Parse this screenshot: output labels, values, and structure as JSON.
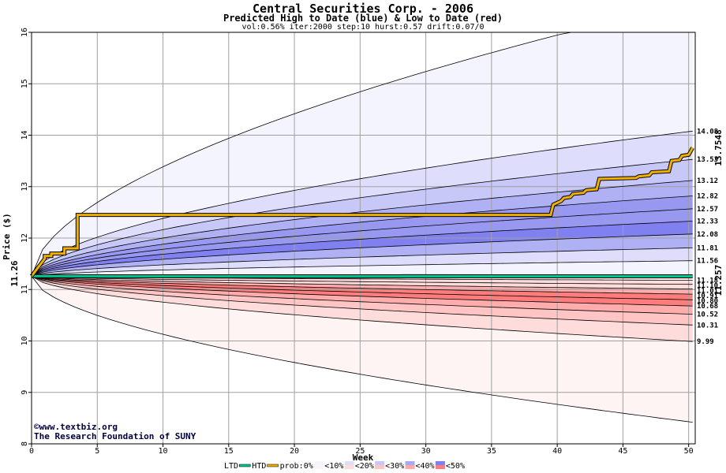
{
  "chart_data": {
    "type": "area",
    "title": "Central Securities Corp. - 2006",
    "subtitle": "Predicted High to Date (blue) &  Low to Date (red)",
    "params": "vol:0.56% iter:2000 step:10 hurst:0.57 drift:0.07/0",
    "xlabel": "Week",
    "ylabel": "Price ($)",
    "xlim": [
      0,
      50.5
    ],
    "ylim": [
      8,
      16
    ],
    "x_ticks": [
      "0",
      "5",
      "10",
      "15",
      "20",
      "25",
      "30",
      "35",
      "40",
      "45",
      "50"
    ],
    "y_ticks": [
      "8",
      "9",
      "10",
      "11",
      "12",
      "13",
      "14",
      "15",
      "16"
    ],
    "grid": true,
    "start_price": 11.26,
    "start_label": "11.26",
    "htd_final_label": "13.7548",
    "ltd_final_label": "11.257",
    "colors": {
      "htd": "#f0b000",
      "ltd": "#00c890",
      "htd_label": "#a07800",
      "ltd_label": "#007050",
      "high_bands": [
        "#f4f4ff",
        "#dedefc",
        "#c8c8f8",
        "#b0b0f4",
        "#9898f0",
        "#8080f0"
      ],
      "low_bands": [
        "#fff4f4",
        "#ffdcdc",
        "#ffc4c4",
        "#ffacac",
        "#ff9494",
        "#ff7c7c"
      ]
    },
    "high_quantiles": [
      {
        "final": 16.6,
        "label": ""
      },
      {
        "final": 14.08,
        "label": "14.08"
      },
      {
        "final": 13.53,
        "label": "13.53"
      },
      {
        "final": 13.12,
        "label": "13.12"
      },
      {
        "final": 12.82,
        "label": "12.82"
      },
      {
        "final": 12.57,
        "label": "12.57"
      },
      {
        "final": 12.33,
        "label": "12.33"
      },
      {
        "final": 12.08,
        "label": "12.08"
      },
      {
        "final": 11.81,
        "label": "11.81"
      },
      {
        "final": 11.56,
        "label": "11.56"
      }
    ],
    "low_quantiles": [
      {
        "final": 11.18,
        "label": "11.18"
      },
      {
        "final": 11.1,
        "label": "11.10"
      },
      {
        "final": 11.01,
        "label": "11.01"
      },
      {
        "final": 10.91,
        "label": "10.91"
      },
      {
        "final": 10.8,
        "label": "10.80"
      },
      {
        "final": 10.68,
        "label": "10.68"
      },
      {
        "final": 10.52,
        "label": "10.52"
      },
      {
        "final": 10.31,
        "label": "10.31"
      },
      {
        "final": 9.99,
        "label": "9.99"
      },
      {
        "final": 8.42,
        "label": ""
      }
    ],
    "htd_series": {
      "x": [
        0,
        1,
        1,
        1.5,
        1.5,
        2.5,
        2.5,
        3.5,
        3.5,
        39.5,
        39.7,
        40.3,
        40.5,
        41,
        41.2,
        42,
        42.2,
        43,
        43.2,
        46,
        46.2,
        47,
        47.2,
        48.5,
        48.7,
        49.3,
        49.5,
        50,
        50.3
      ],
      "y": [
        11.26,
        11.6,
        11.65,
        11.65,
        11.7,
        11.7,
        11.8,
        11.8,
        12.45,
        12.45,
        12.65,
        12.72,
        12.78,
        12.8,
        12.86,
        12.88,
        12.93,
        12.95,
        13.15,
        13.17,
        13.2,
        13.22,
        13.28,
        13.3,
        13.5,
        13.52,
        13.6,
        13.62,
        13.755
      ]
    },
    "ltd_series": {
      "x": [
        0,
        50.3
      ],
      "y": [
        11.26,
        11.257
      ]
    },
    "credits": [
      "©www.textbiz.org",
      "The Research Foundation of SUNY"
    ],
    "legend": {
      "ltd": "LTD",
      "htd": "HTD",
      "prob_prefix": "prob:0%",
      "buckets": [
        "<10%",
        "<20%",
        "<30%",
        "<40%",
        "<50%"
      ],
      "bucket_colors": [
        [
          "#f4f4ff",
          "#fff4f4"
        ],
        [
          "#dedefc",
          "#ffdcdc"
        ],
        [
          "#c8c8f8",
          "#ffc4c4"
        ],
        [
          "#a8a8f4",
          "#ffa8a8"
        ],
        [
          "#8080f0",
          "#ff7c7c"
        ]
      ]
    }
  }
}
